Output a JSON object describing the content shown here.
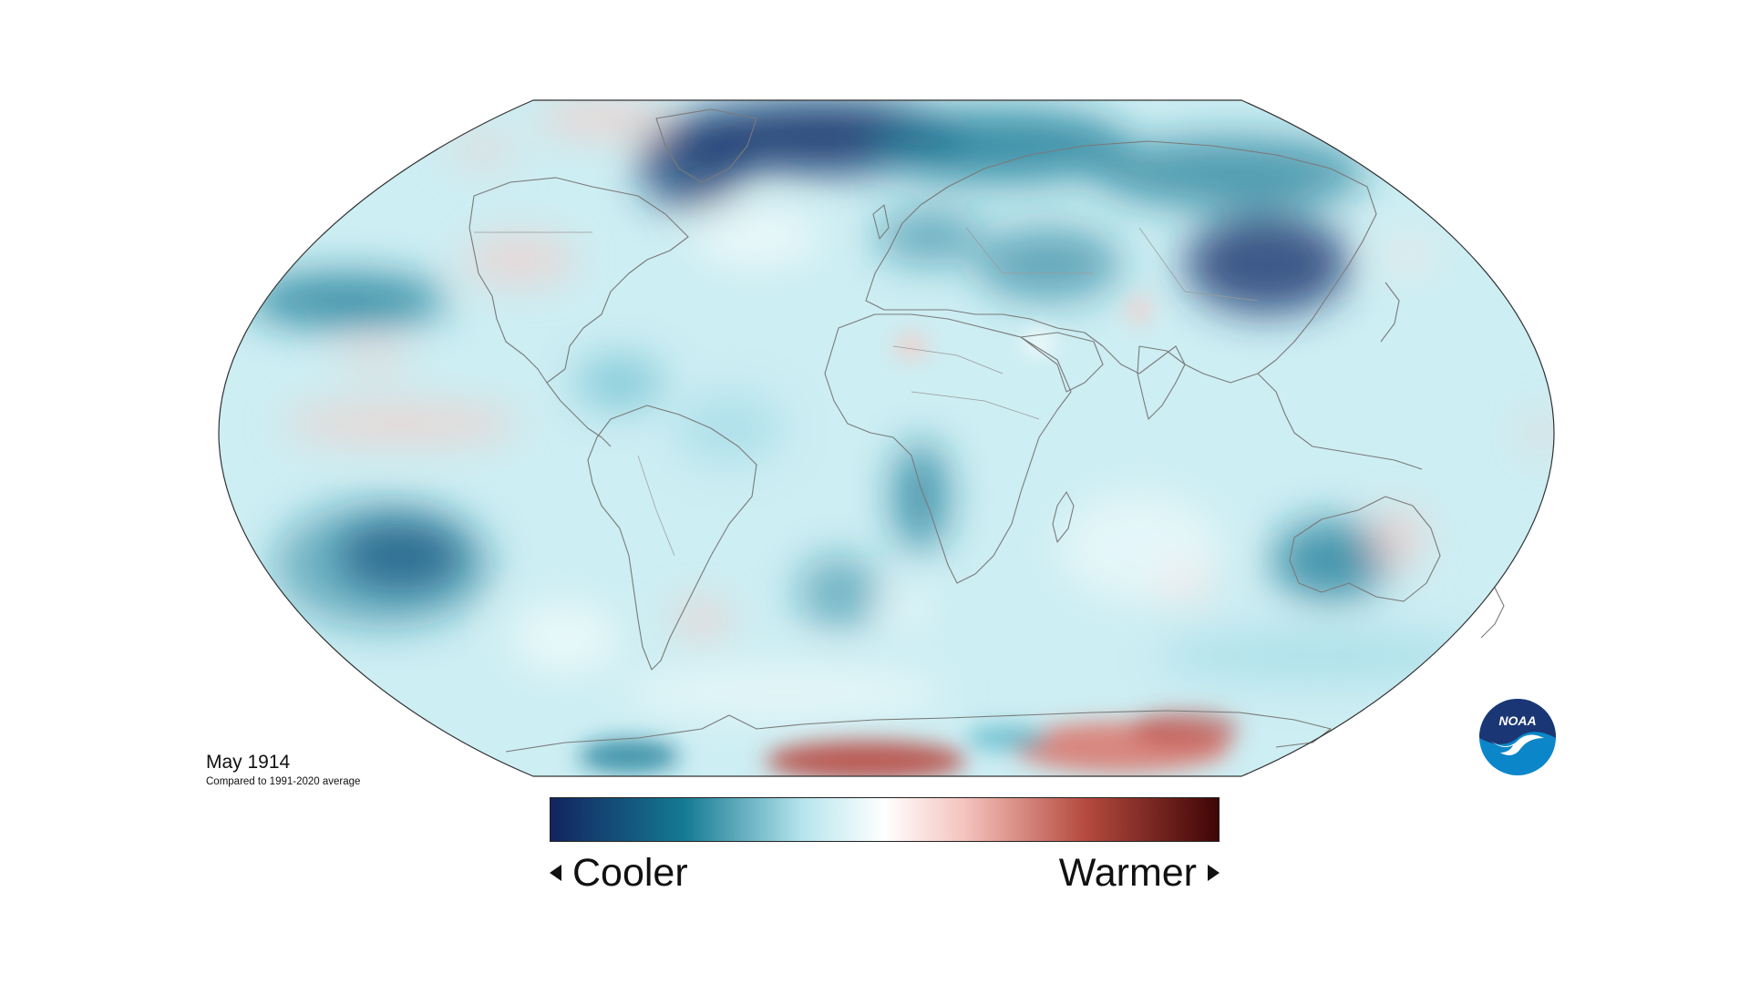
{
  "map": {
    "title": "May 1914",
    "subtitle": "Compared to 1991-2020 average",
    "projection": "Robinson",
    "variable": "temperature anomaly"
  },
  "legend": {
    "left_label": "Cooler",
    "right_label": "Warmer",
    "left_arrow_icon": "triangle-left-icon",
    "right_arrow_icon": "triangle-right-icon",
    "scale_colors": [
      "#13245e",
      "#147a93",
      "#b8e6ee",
      "#ffffff",
      "#f4c3bd",
      "#b54a3f",
      "#3f0505"
    ]
  },
  "logo": {
    "text": "NOAA",
    "colors": {
      "top": "#1a3675",
      "bottom": "#0b86c9",
      "bird": "#ffffff"
    }
  },
  "colors": {
    "base": "#cdeef3",
    "deep_cool": "#16366e",
    "cool": "#1a7a96",
    "mid_cool": "#5bb6c9",
    "light_cool": "#a9dde8",
    "warm": "#f5cbc6",
    "deep_warm": "#b84a42",
    "coast": "#7a7a7a"
  }
}
